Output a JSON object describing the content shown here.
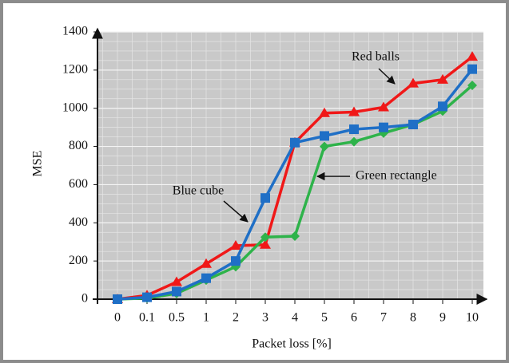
{
  "chart_data": {
    "type": "line",
    "x_label": "Packet loss [%]",
    "y_label": "MSE",
    "categories": [
      "0",
      "0.1",
      "0.5",
      "1",
      "2",
      "3",
      "4",
      "5",
      "6",
      "7",
      "8",
      "9",
      "10"
    ],
    "series": [
      {
        "name": "Red balls",
        "color": "#f01818",
        "marker": "triangle",
        "values": [
          0,
          20,
          90,
          185,
          280,
          285,
          820,
          975,
          980,
          1005,
          1130,
          1150,
          1270
        ]
      },
      {
        "name": "Green rectangle",
        "color": "#2eb34a",
        "marker": "diamond",
        "values": [
          0,
          5,
          30,
          100,
          170,
          325,
          330,
          800,
          825,
          870,
          915,
          985,
          1120
        ]
      },
      {
        "name": "Blue cube",
        "color": "#1f6fc6",
        "marker": "square",
        "values": [
          0,
          10,
          40,
          110,
          200,
          530,
          820,
          855,
          890,
          900,
          915,
          1010,
          1205
        ]
      }
    ],
    "ylim": [
      0,
      1400
    ],
    "yticks": [
      0,
      200,
      400,
      600,
      800,
      1000,
      1200,
      1400
    ],
    "grid": true
  }
}
